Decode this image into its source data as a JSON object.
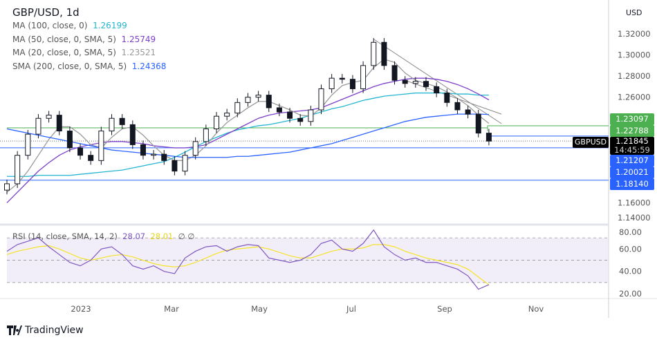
{
  "header": {
    "title": "GBP/USD, 1d",
    "currency": "USD"
  },
  "indicators": [
    {
      "label": "MA (100, close, 0)",
      "value": "1.26199",
      "color": "#22b5d1"
    },
    {
      "label": "MA (50, close, 0, SMA, 5)",
      "value": "1.25749",
      "color": "#7b3fc9"
    },
    {
      "label": "MA (20, close, 0, SMA, 5)",
      "value": "1.23521",
      "color": "#999999"
    },
    {
      "label": "SMA (200, close, 0, SMA, 5)",
      "value": "1.24368",
      "color": "#2962ff"
    }
  ],
  "rsi": {
    "label": "RSI (14, close, SMA, 14, 2)",
    "value": "28.07",
    "signal_value": "28.01",
    "extra": "∅ ∅",
    "color": "#7e57c2",
    "signal_color": "#f5e326"
  },
  "price_labels": [
    {
      "text": "1.23097",
      "color": "#4caf50",
      "price": 1.23097
    },
    {
      "text": "1.22788",
      "color": "#4caf50",
      "price": 1.22788
    },
    {
      "text": "1.21207",
      "color": "#2962ff",
      "price": 1.21207
    },
    {
      "text": "1.20021",
      "color": "#2962ff",
      "price": 1.20021
    },
    {
      "text": "1.18140",
      "color": "#2962ff",
      "price": 1.1814
    }
  ],
  "current": {
    "symbol": "GBPUSD",
    "price": "1.21845",
    "countdown": "14:45:59"
  },
  "brand": "TradingView",
  "chart_data": {
    "type": "candlestick",
    "title": "GBP/USD, 1d",
    "x_start": "2022-11-13",
    "x_step_days": 7,
    "x_ticks": [
      "2023",
      "Mar",
      "May",
      "Jul",
      "Sep",
      "Nov"
    ],
    "y_ticks": [
      "1.32000",
      "1.30000",
      "1.28000",
      "1.26000",
      "1.16000",
      "1.14000"
    ],
    "ylim": [
      1.14,
      1.32
    ],
    "close": [
      1.178,
      1.205,
      1.225,
      1.24,
      1.243,
      1.228,
      1.212,
      1.205,
      1.2,
      1.228,
      1.24,
      1.234,
      1.215,
      1.205,
      1.206,
      1.2,
      1.19,
      1.205,
      1.218,
      1.23,
      1.242,
      1.245,
      1.255,
      1.26,
      1.262,
      1.25,
      1.246,
      1.24,
      1.237,
      1.248,
      1.268,
      1.278,
      1.277,
      1.268,
      1.29,
      1.312,
      1.29,
      1.276,
      1.273,
      1.275,
      1.27,
      1.264,
      1.255,
      1.248,
      1.244,
      1.226,
      1.21845
    ],
    "series": [
      {
        "name": "MA (100, close, 0)",
        "color": "#22b5d1",
        "values": [
          1.185,
          1.185,
          1.185,
          1.186,
          1.186,
          1.186,
          1.186,
          1.187,
          1.188,
          1.189,
          1.19,
          1.191,
          1.193,
          1.195,
          1.197,
          1.199,
          1.203,
          1.208,
          1.213,
          1.218,
          1.222,
          1.226,
          1.229,
          1.231,
          1.233,
          1.234,
          1.236,
          1.238,
          1.24,
          1.243,
          1.246,
          1.249,
          1.251,
          1.254,
          1.257,
          1.259,
          1.261,
          1.262,
          1.263,
          1.264,
          1.264,
          1.264,
          1.264,
          1.263,
          1.263,
          1.262,
          1.26199
        ]
      },
      {
        "name": "MA (50, close, 0, SMA, 5)",
        "color": "#7b3fc9",
        "values": [
          1.16,
          1.17,
          1.18,
          1.19,
          1.198,
          1.205,
          1.21,
          1.213,
          1.215,
          1.217,
          1.218,
          1.218,
          1.217,
          1.216,
          1.214,
          1.213,
          1.212,
          1.212,
          1.213,
          1.215,
          1.22,
          1.225,
          1.23,
          1.235,
          1.24,
          1.243,
          1.245,
          1.246,
          1.247,
          1.248,
          1.25,
          1.254,
          1.258,
          1.262,
          1.266,
          1.27,
          1.273,
          1.275,
          1.277,
          1.278,
          1.278,
          1.277,
          1.275,
          1.272,
          1.268,
          1.263,
          1.25749
        ]
      },
      {
        "name": "MA (20, close, 0, SMA, 5)",
        "color": "#999999",
        "values": [
          1.17,
          1.178,
          1.19,
          1.205,
          1.22,
          1.232,
          1.232,
          1.225,
          1.215,
          1.212,
          1.222,
          1.23,
          1.232,
          1.224,
          1.214,
          1.205,
          1.2,
          1.2,
          1.205,
          1.214,
          1.226,
          1.236,
          1.243,
          1.25,
          1.256,
          1.256,
          1.252,
          1.248,
          1.243,
          1.242,
          1.25,
          1.262,
          1.271,
          1.274,
          1.276,
          1.288,
          1.296,
          1.293,
          1.283,
          1.276,
          1.273,
          1.27,
          1.265,
          1.259,
          1.252,
          1.243,
          1.23521
        ]
      },
      {
        "name": "SMA (200, close, 0, SMA, 5)",
        "color": "#2962ff",
        "values": [
          1.23,
          1.228,
          1.226,
          1.224,
          1.222,
          1.22,
          1.218,
          1.216,
          1.214,
          1.212,
          1.21,
          1.209,
          1.208,
          1.207,
          1.206,
          1.205,
          1.204,
          1.203,
          1.203,
          1.203,
          1.203,
          1.203,
          1.204,
          1.204,
          1.205,
          1.206,
          1.207,
          1.208,
          1.21,
          1.212,
          1.214,
          1.216,
          1.219,
          1.222,
          1.225,
          1.228,
          1.231,
          1.234,
          1.237,
          1.239,
          1.241,
          1.242,
          1.243,
          1.244,
          1.244,
          1.244,
          1.24368
        ]
      }
    ],
    "rsi_chart": {
      "ylim": [
        15,
        85
      ],
      "y_ticks": [
        "80.00",
        "60.00",
        "40.00",
        "20.00"
      ],
      "bands": [
        30,
        50,
        70
      ],
      "rsi": [
        58,
        64,
        67,
        70,
        62,
        55,
        48,
        45,
        50,
        60,
        62,
        55,
        45,
        42,
        45,
        40,
        38,
        52,
        58,
        62,
        63,
        58,
        62,
        64,
        63,
        52,
        50,
        48,
        50,
        55,
        65,
        68,
        60,
        58,
        65,
        77,
        62,
        55,
        50,
        52,
        48,
        48,
        45,
        42,
        36,
        24,
        28.07
      ],
      "signal": [
        55,
        58,
        60,
        62,
        63,
        60,
        56,
        52,
        50,
        52,
        54,
        55,
        53,
        50,
        47,
        45,
        44,
        45,
        48,
        52,
        56,
        59,
        60,
        61,
        62,
        60,
        57,
        54,
        52,
        52,
        55,
        58,
        60,
        60,
        61,
        64,
        64,
        62,
        58,
        55,
        52,
        50,
        48,
        46,
        42,
        35,
        28.01
      ]
    }
  }
}
